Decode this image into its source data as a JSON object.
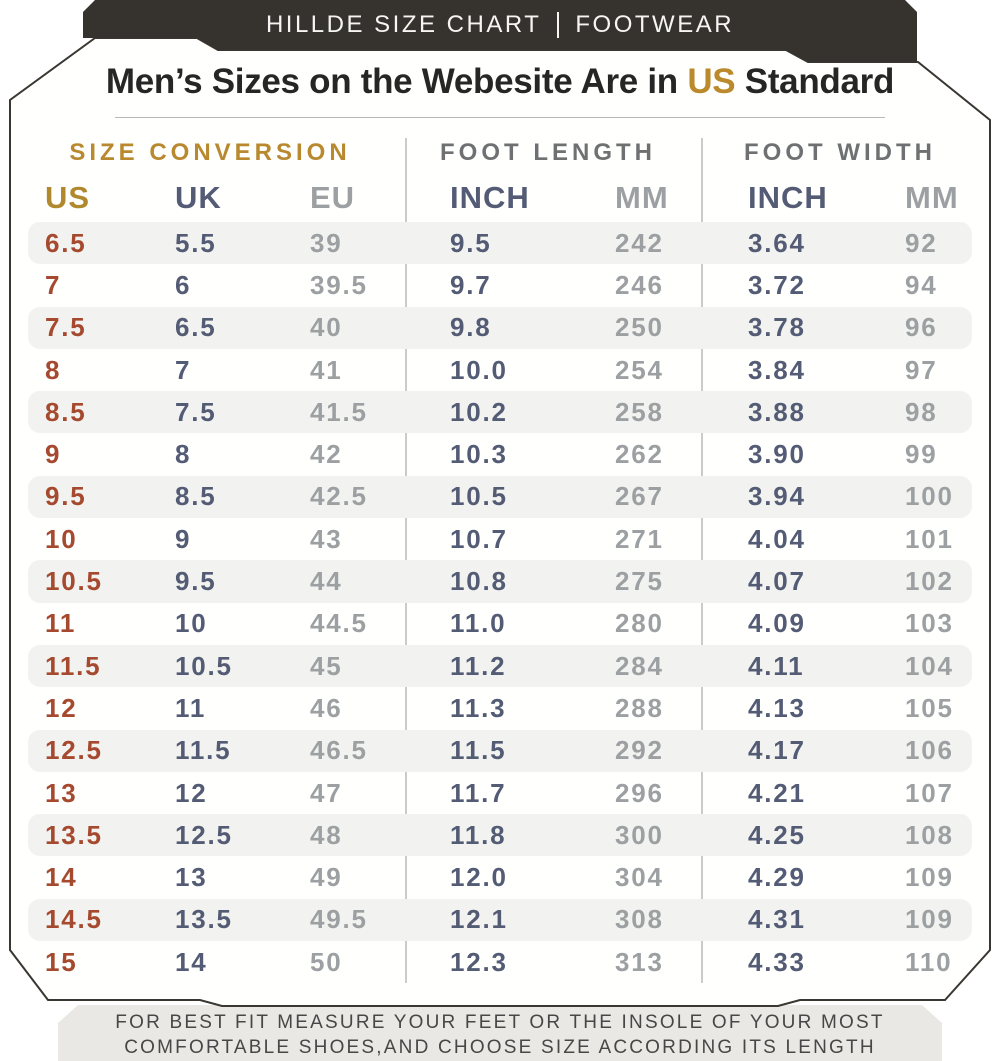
{
  "banner": {
    "brand": "HILLDE SIZE CHART",
    "category": "FOOTWEAR"
  },
  "title": {
    "prefix": "Men’s Sizes on the Webesite Are in ",
    "highlight": "US",
    "suffix": " Standard"
  },
  "chart_data": {
    "type": "table",
    "title": "Men’s Sizes on the Webesite Are in US Standard",
    "section_headers": [
      "SIZE CONVERSION",
      "FOOT LENGTH",
      "FOOT WIDTH"
    ],
    "columns": [
      "US",
      "UK",
      "EU",
      "INCH",
      "MM",
      "INCH",
      "MM"
    ],
    "column_keys": [
      "us",
      "uk",
      "eu",
      "length-inch",
      "length-mm",
      "width-inch",
      "width-mm"
    ],
    "rows": [
      [
        "6.5",
        "5.5",
        "39",
        "9.5",
        "242",
        "3.64",
        "92"
      ],
      [
        "7",
        "6",
        "39.5",
        "9.7",
        "246",
        "3.72",
        "94"
      ],
      [
        "7.5",
        "6.5",
        "40",
        "9.8",
        "250",
        "3.78",
        "96"
      ],
      [
        "8",
        "7",
        "41",
        "10.0",
        "254",
        "3.84",
        "97"
      ],
      [
        "8.5",
        "7.5",
        "41.5",
        "10.2",
        "258",
        "3.88",
        "98"
      ],
      [
        "9",
        "8",
        "42",
        "10.3",
        "262",
        "3.90",
        "99"
      ],
      [
        "9.5",
        "8.5",
        "42.5",
        "10.5",
        "267",
        "3.94",
        "100"
      ],
      [
        "10",
        "9",
        "43",
        "10.7",
        "271",
        "4.04",
        "101"
      ],
      [
        "10.5",
        "9.5",
        "44",
        "10.8",
        "275",
        "4.07",
        "102"
      ],
      [
        "11",
        "10",
        "44.5",
        "11.0",
        "280",
        "4.09",
        "103"
      ],
      [
        "11.5",
        "10.5",
        "45",
        "11.2",
        "284",
        "4.11",
        "104"
      ],
      [
        "12",
        "11",
        "46",
        "11.3",
        "288",
        "4.13",
        "105"
      ],
      [
        "12.5",
        "11.5",
        "46.5",
        "11.5",
        "292",
        "4.17",
        "106"
      ],
      [
        "13",
        "12",
        "47",
        "11.7",
        "296",
        "4.21",
        "107"
      ],
      [
        "13.5",
        "12.5",
        "48",
        "11.8",
        "300",
        "4.25",
        "108"
      ],
      [
        "14",
        "13",
        "49",
        "12.0",
        "304",
        "4.29",
        "109"
      ],
      [
        "14.5",
        "13.5",
        "49.5",
        "12.1",
        "308",
        "4.31",
        "109"
      ],
      [
        "15",
        "14",
        "50",
        "12.3",
        "313",
        "4.33",
        "110"
      ]
    ]
  },
  "footer": {
    "line1": "FOR BEST FIT MEASURE YOUR FEET OR THE INSOLE OF YOUR MOST",
    "line2": "COMFORTABLE SHOES,AND CHOOSE SIZE ACCORDING ITS LENGTH"
  },
  "colors": {
    "banner_bg": "#36322e",
    "accent_gold": "#b8892f",
    "accent_rust": "#a5492f",
    "accent_slate": "#545c75",
    "muted_gray": "#9da0a2",
    "section_gray": "#6e7072",
    "stripe_bg": "#f2f3f0",
    "footer_bg": "#e9e8e4",
    "card_border": "#3a3631"
  }
}
